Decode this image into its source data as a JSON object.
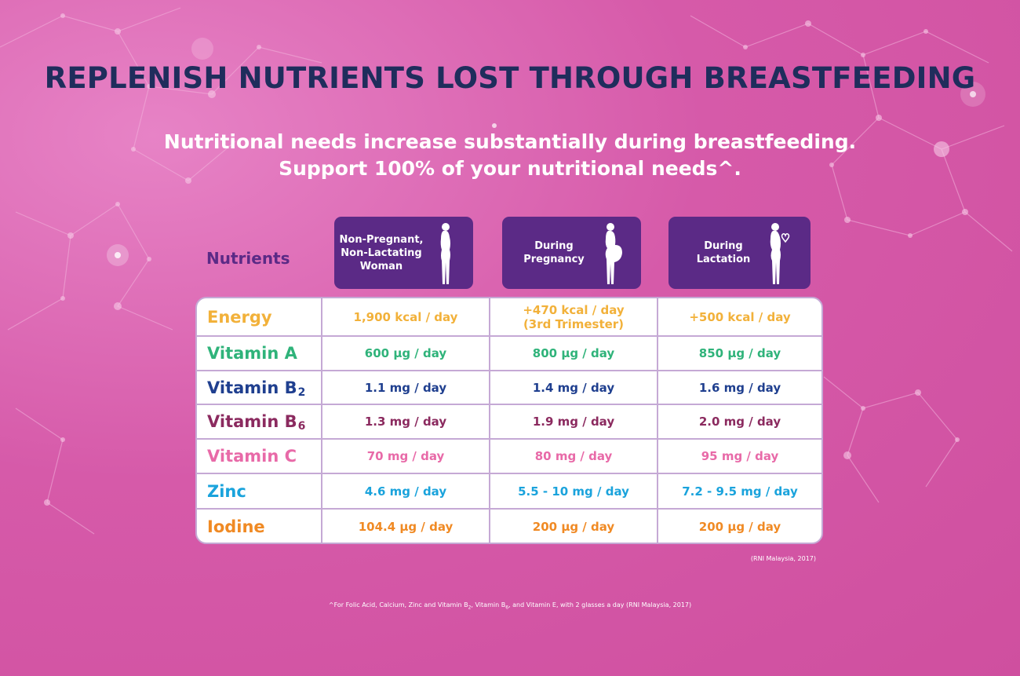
{
  "headline": "REPLENISH NUTRIENTS LOST THROUGH BREASTFEEDING",
  "subhead": {
    "line1": "Nutritional needs increase substantially during breastfeeding.",
    "line2": "Support 100% of your nutritional needs^."
  },
  "table": {
    "nutrients_label": "Nutrients",
    "columns": [
      {
        "lines": [
          "Non-Pregnant,",
          "Non-Lactating",
          "Woman"
        ],
        "icon": "woman-silhouette-icon"
      },
      {
        "lines": [
          "During",
          "Pregnancy"
        ],
        "icon": "pregnant-woman-silhouette-icon"
      },
      {
        "lines": [
          "During",
          "Lactation"
        ],
        "icon": "lactating-woman-silhouette-icon"
      }
    ],
    "rows": [
      {
        "name": "Energy",
        "sub": "",
        "color": "#f2b13a",
        "values": [
          "1,900 kcal / day",
          "+470 kcal / day",
          "+500 kcal / day"
        ],
        "note": "(3rd Trimester)"
      },
      {
        "name": "Vitamin A",
        "sub": "",
        "color": "#2fb37a",
        "values": [
          "600 µg / day",
          "800 µg / day",
          "850 µg / day"
        ]
      },
      {
        "name": "Vitamin B",
        "sub": "2",
        "color": "#1f3f8f",
        "values": [
          "1.1 mg / day",
          "1.4 mg / day",
          "1.6 mg / day"
        ]
      },
      {
        "name": "Vitamin B",
        "sub": "6",
        "color": "#8b2a5f",
        "values": [
          "1.3 mg / day",
          "1.9 mg / day",
          "2.0 mg / day"
        ]
      },
      {
        "name": "Vitamin C",
        "sub": "",
        "color": "#e86aa8",
        "values": [
          "70 mg / day",
          "80 mg / day",
          "95 mg / day"
        ]
      },
      {
        "name": "Zinc",
        "sub": "",
        "color": "#1aa3dc",
        "values": [
          "4.6 mg / day",
          "5.5 - 10 mg / day",
          "7.2 - 9.5 mg / day"
        ]
      },
      {
        "name": "Iodine",
        "sub": "",
        "color": "#f08a24",
        "values": [
          "104.4 µg / day",
          "200 µg / day",
          "200 µg / day"
        ]
      }
    ]
  },
  "source": "(RNI Malaysia, 2017)",
  "footnote": {
    "part1": "^For Folic Acid, Calcium, Zinc and Vitamin B",
    "sub1": "2",
    "part2": ", Vitamin B",
    "sub2": "6",
    "part3": ", and Vitamin E, with 2 glasses a day (RNI Malaysia, 2017)"
  },
  "colors": {
    "background": "#d65aa9",
    "headline": "#1f2d5c",
    "header_box": "#5b2a86",
    "table_border": "#c5a9d5"
  }
}
